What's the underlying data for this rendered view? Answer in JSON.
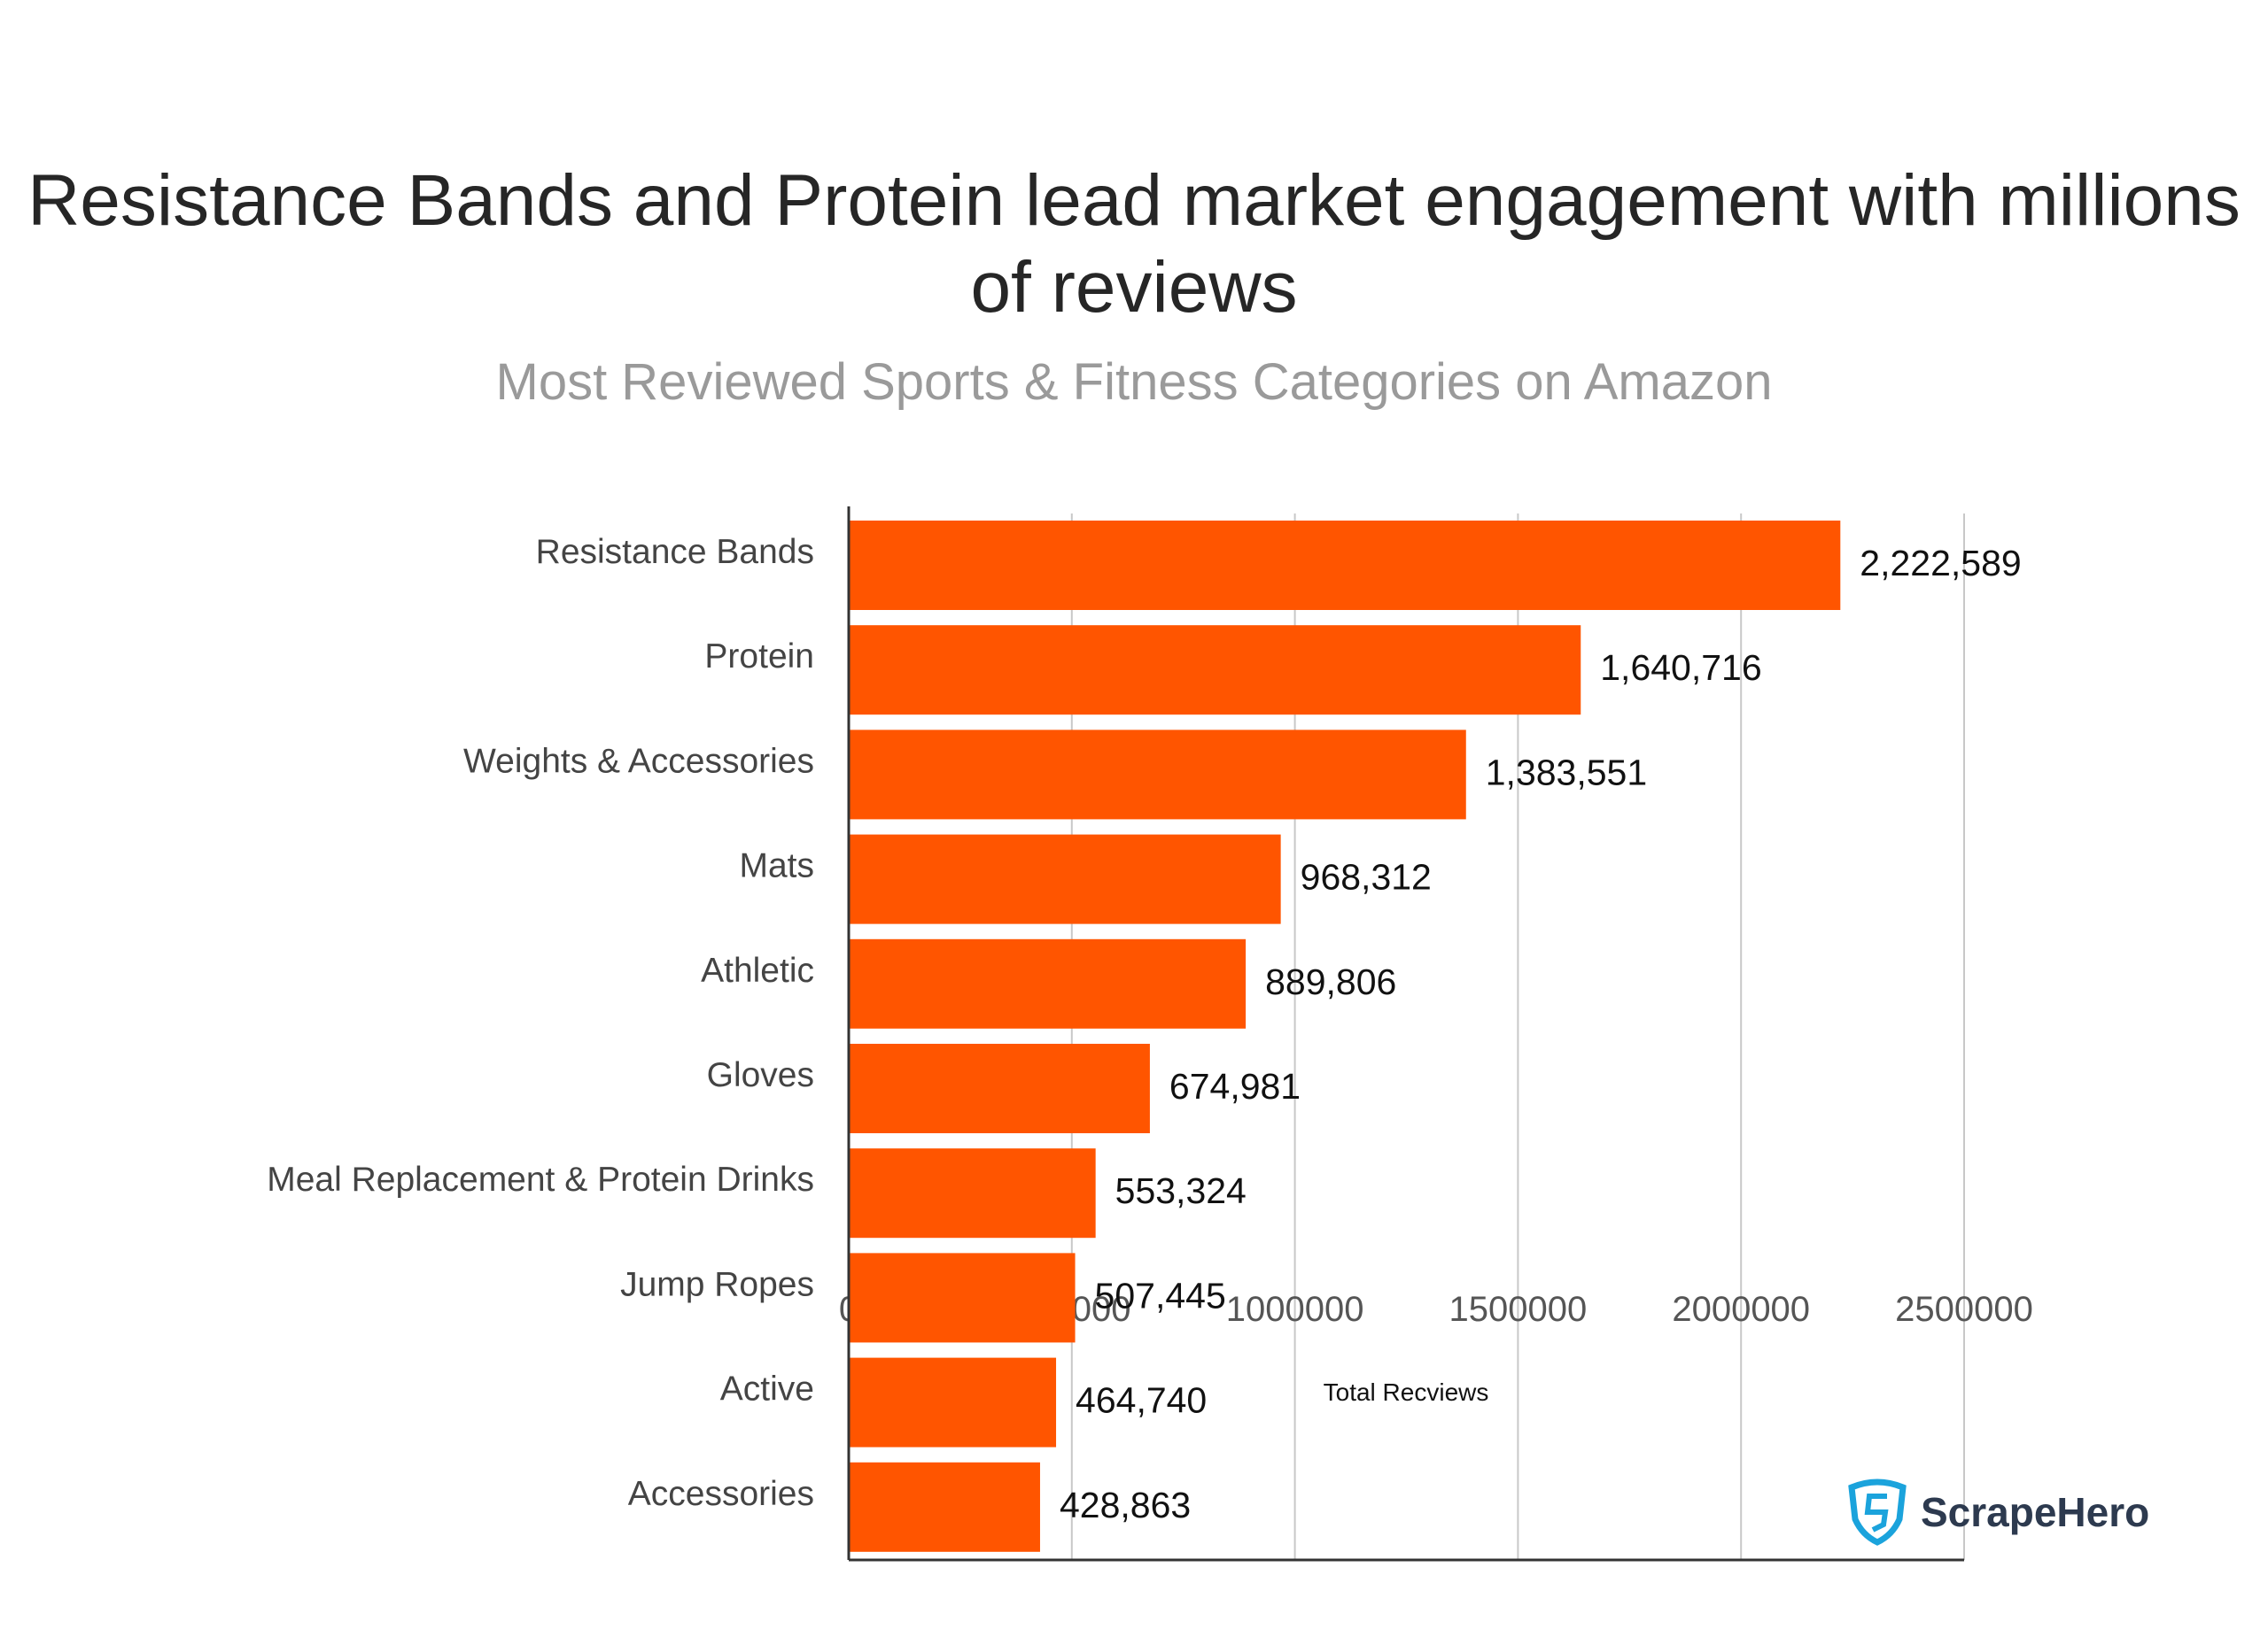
{
  "chart_data": {
    "type": "bar",
    "orientation": "horizontal",
    "title": "Resistance Bands and Protein lead market engagement with millions of reviews",
    "subtitle": "Most Reviewed Sports & Fitness Categories on Amazon",
    "xlabel": "Total Recviews",
    "ylabel": "",
    "categories": [
      "Resistance Bands",
      "Protein",
      "Weights & Accessories",
      "Mats",
      "Athletic",
      "Gloves",
      "Meal Replacement & Protein Drinks",
      "Jump Ropes",
      "Active",
      "Accessories"
    ],
    "values": [
      2222589,
      1640716,
      1383551,
      968312,
      889806,
      674981,
      553324,
      507445,
      464740,
      428863
    ],
    "data_labels": [
      "2,222,589",
      "1,640,716",
      "1,383,551",
      "968,312",
      "889,806",
      "674,981",
      "553,324",
      "507,445",
      "464,740",
      "428,863"
    ],
    "xlim": [
      0,
      2500000
    ],
    "xticks": [
      "0",
      "500000",
      "1000000",
      "1500000",
      "2000000",
      "2500000"
    ],
    "grid": "vertical",
    "bar_color": "#FF5500"
  },
  "logo": {
    "text": "ScrapeHero",
    "color": "#1BA3DC"
  }
}
